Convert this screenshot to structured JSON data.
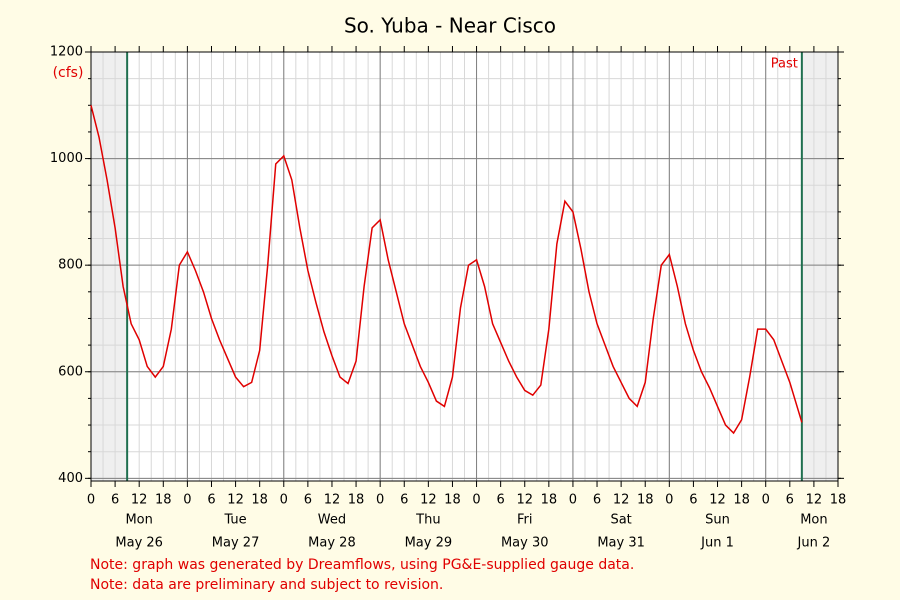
{
  "chart_data": {
    "type": "line",
    "title": "So. Yuba - Near Cisco",
    "y_unit": "(cfs)",
    "past_label": "Past",
    "notes": [
      "Note: graph was generated by Dreamflows, using PG&E-supplied gauge data.",
      "Note: data are preliminary and subject to revision."
    ],
    "days": [
      {
        "weekday": "Mon",
        "date": "May 26"
      },
      {
        "weekday": "Tue",
        "date": "May 27"
      },
      {
        "weekday": "Wed",
        "date": "May 28"
      },
      {
        "weekday": "Thu",
        "date": "May 29"
      },
      {
        "weekday": "Fri",
        "date": "May 30"
      },
      {
        "weekday": "Sat",
        "date": "May 31"
      },
      {
        "weekday": "Sun",
        "date": "Jun 1"
      },
      {
        "weekday": "Mon",
        "date": "Jun 2"
      }
    ],
    "xlim": [
      0,
      186
    ],
    "xticks": [
      0,
      {
        "value": 6,
        "label": "6"
      },
      {
        "value": 12,
        "label": "12"
      },
      {
        "value": 18,
        "label": "18"
      },
      {
        "value": 24,
        "label": "0"
      },
      {
        "value": 30,
        "label": "6"
      },
      {
        "value": 36,
        "label": "12"
      },
      {
        "value": 42,
        "label": "18"
      },
      {
        "value": 48,
        "label": "0"
      },
      {
        "value": 54,
        "label": "6"
      },
      {
        "value": 60,
        "label": "12"
      },
      {
        "value": 66,
        "label": "18"
      },
      {
        "value": 72,
        "label": "0"
      },
      {
        "value": 78,
        "label": "6"
      },
      {
        "value": 84,
        "label": "12"
      },
      {
        "value": 90,
        "label": "18"
      },
      {
        "value": 96,
        "label": "0"
      },
      {
        "value": 102,
        "label": "6"
      },
      {
        "value": 108,
        "label": "12"
      },
      {
        "value": 114,
        "label": "18"
      },
      {
        "value": 120,
        "label": "0"
      },
      {
        "value": 126,
        "label": "6"
      },
      {
        "value": 132,
        "label": "12"
      },
      {
        "value": 138,
        "label": "18"
      },
      {
        "value": 144,
        "label": "0"
      },
      {
        "value": 150,
        "label": "6"
      },
      {
        "value": 156,
        "label": "12"
      },
      {
        "value": 162,
        "label": "18"
      },
      {
        "value": 168,
        "label": "0"
      },
      {
        "value": 174,
        "label": "6"
      },
      {
        "value": 180,
        "label": "12"
      },
      {
        "value": 186,
        "label": "18"
      }
    ],
    "ylim": [
      395,
      1200
    ],
    "yticks": [
      400,
      600,
      800,
      1000,
      1200
    ],
    "minor_grid": {
      "x": 3,
      "y": 50
    },
    "grid": true,
    "now_lines": [
      9,
      177
    ],
    "x": [
      0,
      2,
      4,
      6,
      8,
      10,
      12,
      14,
      16,
      18,
      20,
      22,
      24,
      26,
      28,
      30,
      32,
      34,
      36,
      38,
      40,
      42,
      44,
      46,
      48,
      50,
      52,
      54,
      56,
      58,
      60,
      62,
      64,
      66,
      68,
      70,
      72,
      74,
      76,
      78,
      80,
      82,
      84,
      86,
      88,
      90,
      92,
      94,
      96,
      98,
      100,
      102,
      104,
      106,
      108,
      110,
      112,
      114,
      116,
      118,
      120,
      122,
      124,
      126,
      128,
      130,
      132,
      134,
      136,
      138,
      140,
      142,
      144,
      146,
      148,
      150,
      152,
      154,
      156,
      158,
      160,
      162,
      164,
      166,
      168,
      170,
      172,
      174,
      176,
      177
    ],
    "series": [
      {
        "color": "#e00000",
        "values": [
          1100,
          1040,
          960,
          870,
          760,
          690,
          660,
          610,
          590,
          610,
          680,
          800,
          825,
          790,
          750,
          700,
          660,
          625,
          590,
          572,
          580,
          640,
          800,
          990,
          1005,
          960,
          870,
          790,
          730,
          675,
          630,
          590,
          578,
          620,
          760,
          870,
          885,
          810,
          750,
          690,
          650,
          610,
          580,
          545,
          535,
          590,
          720,
          800,
          810,
          760,
          690,
          655,
          620,
          590,
          565,
          556,
          575,
          680,
          840,
          920,
          900,
          830,
          750,
          690,
          650,
          610,
          580,
          550,
          535,
          580,
          700,
          800,
          820,
          760,
          690,
          640,
          600,
          570,
          535,
          500,
          485,
          510,
          590,
          680,
          680,
          660,
          620,
          580,
          530,
          505
        ]
      }
    ]
  }
}
